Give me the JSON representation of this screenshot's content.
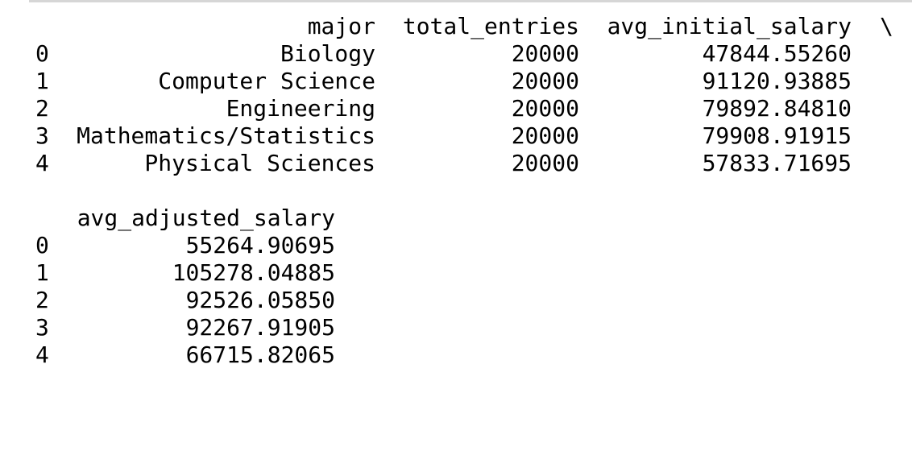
{
  "block1": {
    "headers": {
      "major": "major",
      "total_entries": "total_entries",
      "avg_initial_salary": "avg_initial_salary",
      "continuation": "\\"
    },
    "rows": [
      {
        "index": "0",
        "major": "Biology",
        "total_entries": "20000",
        "avg_initial_salary": "47844.55260"
      },
      {
        "index": "1",
        "major": "Computer Science",
        "total_entries": "20000",
        "avg_initial_salary": "91120.93885"
      },
      {
        "index": "2",
        "major": "Engineering",
        "total_entries": "20000",
        "avg_initial_salary": "79892.84810"
      },
      {
        "index": "3",
        "major": "Mathematics/Statistics",
        "total_entries": "20000",
        "avg_initial_salary": "79908.91915"
      },
      {
        "index": "4",
        "major": "Physical Sciences",
        "total_entries": "20000",
        "avg_initial_salary": "57833.71695"
      }
    ]
  },
  "block2": {
    "headers": {
      "avg_adjusted_salary": "avg_adjusted_salary"
    },
    "rows": [
      {
        "index": "0",
        "avg_adjusted_salary": "55264.90695"
      },
      {
        "index": "1",
        "avg_adjusted_salary": "105278.04885"
      },
      {
        "index": "2",
        "avg_adjusted_salary": "92526.05850"
      },
      {
        "index": "3",
        "avg_adjusted_salary": "92267.91905"
      },
      {
        "index": "4",
        "avg_adjusted_salary": "66715.82065"
      }
    ]
  }
}
